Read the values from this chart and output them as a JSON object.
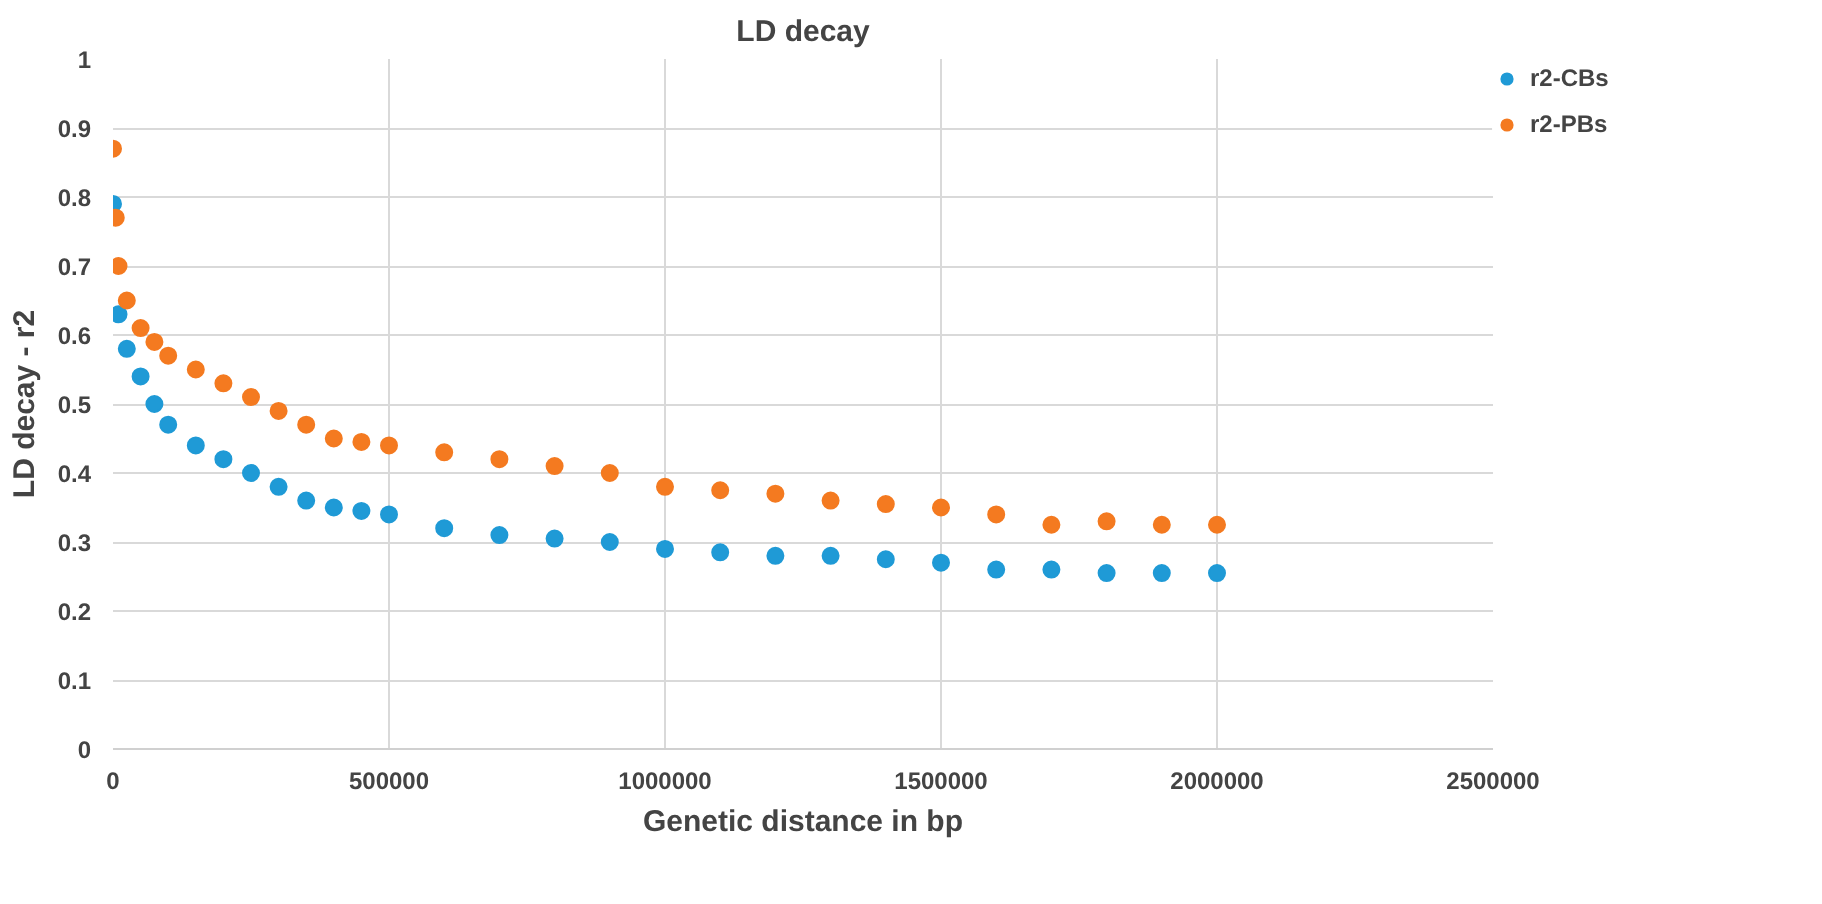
{
  "chart_data": {
    "type": "scatter",
    "title": "LD decay",
    "xlabel": "Genetic distance in bp",
    "ylabel": "LD decay - r2",
    "xlim": [
      0,
      2500000
    ],
    "xticks": [
      0,
      500000,
      1000000,
      1500000,
      2000000,
      2500000
    ],
    "ylim": [
      0,
      1
    ],
    "yticks": [
      0,
      0.1,
      0.2,
      0.3,
      0.4,
      0.5,
      0.6,
      0.7,
      0.8,
      0.9,
      1
    ],
    "grid": true,
    "legend": "right",
    "marker": "circle",
    "series": [
      {
        "name": "r2-CBs",
        "color": "#1f9ad6",
        "x": [
          0,
          10000,
          25000,
          50000,
          75000,
          100000,
          150000,
          200000,
          250000,
          300000,
          350000,
          400000,
          450000,
          500000,
          600000,
          700000,
          800000,
          900000,
          1000000,
          1100000,
          1200000,
          1300000,
          1400000,
          1500000,
          1600000,
          1700000,
          1800000,
          1900000,
          2000000
        ],
        "values": [
          0.79,
          0.63,
          0.58,
          0.54,
          0.5,
          0.47,
          0.44,
          0.42,
          0.4,
          0.38,
          0.36,
          0.35,
          0.345,
          0.34,
          0.32,
          0.31,
          0.305,
          0.3,
          0.29,
          0.285,
          0.28,
          0.28,
          0.275,
          0.27,
          0.26,
          0.26,
          0.255,
          0.255,
          0.255
        ]
      },
      {
        "name": "r2-PBs",
        "color": "#f47a20",
        "x": [
          0,
          5000,
          10000,
          25000,
          50000,
          75000,
          100000,
          150000,
          200000,
          250000,
          300000,
          350000,
          400000,
          450000,
          500000,
          600000,
          700000,
          800000,
          900000,
          1000000,
          1100000,
          1200000,
          1300000,
          1400000,
          1500000,
          1600000,
          1700000,
          1800000,
          1900000,
          2000000
        ],
        "values": [
          0.87,
          0.77,
          0.7,
          0.65,
          0.61,
          0.59,
          0.57,
          0.55,
          0.53,
          0.51,
          0.49,
          0.47,
          0.45,
          0.445,
          0.44,
          0.43,
          0.42,
          0.41,
          0.4,
          0.38,
          0.375,
          0.37,
          0.36,
          0.355,
          0.35,
          0.34,
          0.325,
          0.33,
          0.325,
          0.325
        ]
      }
    ]
  }
}
